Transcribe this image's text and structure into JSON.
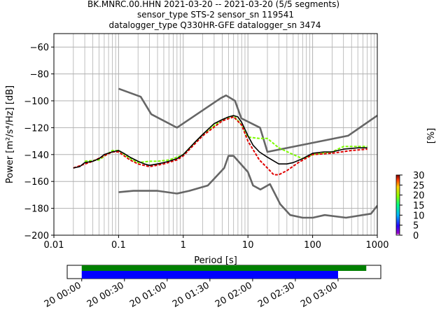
{
  "header": {
    "title_line1": "BK.MNRC.00.HHN   2021-03-20 -- 2021-03-20  (5/5 segments)",
    "title_line2": "sensor_type STS-2 sensor_sn 119541",
    "title_line3": "datalogger_type Q330HR-GFE datalogger_sn 3474"
  },
  "colors": {
    "noise_model": "#666666",
    "mean_psd": "#000000",
    "grid": "#b0b0b0",
    "coverage_green": "#008000",
    "coverage_blue": "#0000ff"
  },
  "colorbar": {
    "label": "[%]",
    "ticks": [
      "0",
      "5",
      "10",
      "15",
      "20",
      "25",
      "30"
    ],
    "range": [
      0,
      30
    ]
  },
  "timeline": {
    "tick_labels": [
      "20 00:00",
      "20 00:30",
      "20 01:00",
      "20 01:30",
      "20 02:00",
      "20 02:30",
      "20 03:00"
    ],
    "green_bar_hours": [
      0.0,
      3.33
    ],
    "blue_bar_hours": [
      0.0,
      3.0
    ],
    "axis_hours": [
      -0.17,
      3.5
    ]
  },
  "chart_data": {
    "type": "line",
    "xlabel": "Period [s]",
    "ylabel": "Power [m²/s⁴/Hz] [dB]",
    "xscale": "log",
    "xlim": [
      0.01,
      1000
    ],
    "ylim": [
      -200,
      -50
    ],
    "x_ticks": [
      "0.01",
      "0.1",
      "1",
      "10",
      "100",
      "1000"
    ],
    "y_ticks": [
      "−60",
      "−80",
      "−100",
      "−120",
      "−140",
      "−160",
      "−180",
      "−200"
    ],
    "grid": true,
    "series": [
      {
        "role": "high-noise-model",
        "points": [
          [
            0.1,
            -91
          ],
          [
            0.22,
            -97
          ],
          [
            0.32,
            -110
          ],
          [
            0.8,
            -120
          ],
          [
            3.8,
            -98
          ],
          [
            4.6,
            -96
          ],
          [
            6.3,
            -100
          ],
          [
            7.9,
            -113
          ],
          [
            15.4,
            -120
          ],
          [
            20,
            -138
          ],
          [
            354,
            -126
          ],
          [
            1000,
            -111
          ]
        ]
      },
      {
        "role": "low-noise-model",
        "points": [
          [
            0.1,
            -168
          ],
          [
            0.17,
            -167
          ],
          [
            0.4,
            -167
          ],
          [
            0.8,
            -169
          ],
          [
            1.24,
            -167
          ],
          [
            2.4,
            -163
          ],
          [
            4.3,
            -150
          ],
          [
            5.0,
            -141
          ],
          [
            6.0,
            -141
          ],
          [
            10,
            -153
          ],
          [
            12,
            -163
          ],
          [
            15.6,
            -166
          ],
          [
            21.9,
            -162
          ],
          [
            31.6,
            -177
          ],
          [
            45,
            -185
          ],
          [
            70,
            -187
          ],
          [
            101,
            -187
          ],
          [
            154,
            -185
          ],
          [
            328,
            -187
          ],
          [
            800,
            -184
          ],
          [
            1000,
            -178
          ]
        ]
      },
      {
        "role": "mean-psd",
        "points": [
          [
            0.02,
            -150
          ],
          [
            0.025,
            -149
          ],
          [
            0.03,
            -146
          ],
          [
            0.04,
            -145
          ],
          [
            0.05,
            -143
          ],
          [
            0.06,
            -140
          ],
          [
            0.08,
            -138
          ],
          [
            0.1,
            -137
          ],
          [
            0.12,
            -139
          ],
          [
            0.15,
            -142
          ],
          [
            0.2,
            -145
          ],
          [
            0.25,
            -147
          ],
          [
            0.3,
            -148
          ],
          [
            0.4,
            -147
          ],
          [
            0.5,
            -146
          ],
          [
            0.6,
            -145
          ],
          [
            0.8,
            -143
          ],
          [
            1.0,
            -140
          ],
          [
            1.5,
            -131
          ],
          [
            2.0,
            -125
          ],
          [
            3.0,
            -117
          ],
          [
            4.0,
            -114
          ],
          [
            5.0,
            -112
          ],
          [
            6.0,
            -111
          ],
          [
            7.0,
            -112
          ],
          [
            8.0,
            -116
          ],
          [
            10.0,
            -126
          ],
          [
            12.0,
            -133
          ],
          [
            15.0,
            -138
          ],
          [
            20.0,
            -142
          ],
          [
            30.0,
            -147
          ],
          [
            40.0,
            -147
          ],
          [
            50.0,
            -146
          ],
          [
            70.0,
            -143
          ],
          [
            100.0,
            -139
          ],
          [
            150.0,
            -138
          ],
          [
            200.0,
            -138
          ],
          [
            300.0,
            -136
          ],
          [
            500.0,
            -135
          ],
          [
            700.0,
            -135
          ]
        ]
      },
      {
        "role": "psd-density-green",
        "points": [
          [
            0.03,
            -145
          ],
          [
            0.05,
            -144
          ],
          [
            0.08,
            -137
          ],
          [
            0.1,
            -137
          ],
          [
            0.15,
            -143
          ],
          [
            0.2,
            -146
          ],
          [
            0.3,
            -145
          ],
          [
            0.4,
            -145
          ],
          [
            0.6,
            -144
          ],
          [
            0.8,
            -142
          ],
          [
            1.0,
            -140
          ],
          [
            2.0,
            -125
          ],
          [
            4.0,
            -114
          ],
          [
            6.0,
            -111
          ],
          [
            8.0,
            -118
          ],
          [
            10.0,
            -127
          ],
          [
            15.0,
            -128
          ],
          [
            20.0,
            -128
          ],
          [
            30.0,
            -135
          ],
          [
            50.0,
            -140
          ],
          [
            70.0,
            -143
          ],
          [
            100.0,
            -140
          ],
          [
            200.0,
            -138
          ],
          [
            300.0,
            -134
          ],
          [
            700.0,
            -134
          ]
        ]
      },
      {
        "role": "psd-density-red",
        "points": [
          [
            0.02,
            -150
          ],
          [
            0.04,
            -145
          ],
          [
            0.08,
            -138
          ],
          [
            0.1,
            -138
          ],
          [
            0.15,
            -144
          ],
          [
            0.2,
            -147
          ],
          [
            0.3,
            -149
          ],
          [
            0.5,
            -147
          ],
          [
            0.8,
            -144
          ],
          [
            1.0,
            -141
          ],
          [
            2.0,
            -126
          ],
          [
            4.0,
            -115
          ],
          [
            6.0,
            -112
          ],
          [
            8.0,
            -118
          ],
          [
            10.0,
            -130
          ],
          [
            15.0,
            -144
          ],
          [
            20.0,
            -150
          ],
          [
            25.0,
            -155
          ],
          [
            30.0,
            -155
          ],
          [
            40.0,
            -152
          ],
          [
            60.0,
            -146
          ],
          [
            100.0,
            -140
          ],
          [
            200.0,
            -139
          ],
          [
            400.0,
            -137
          ],
          [
            700.0,
            -136
          ]
        ]
      }
    ]
  }
}
